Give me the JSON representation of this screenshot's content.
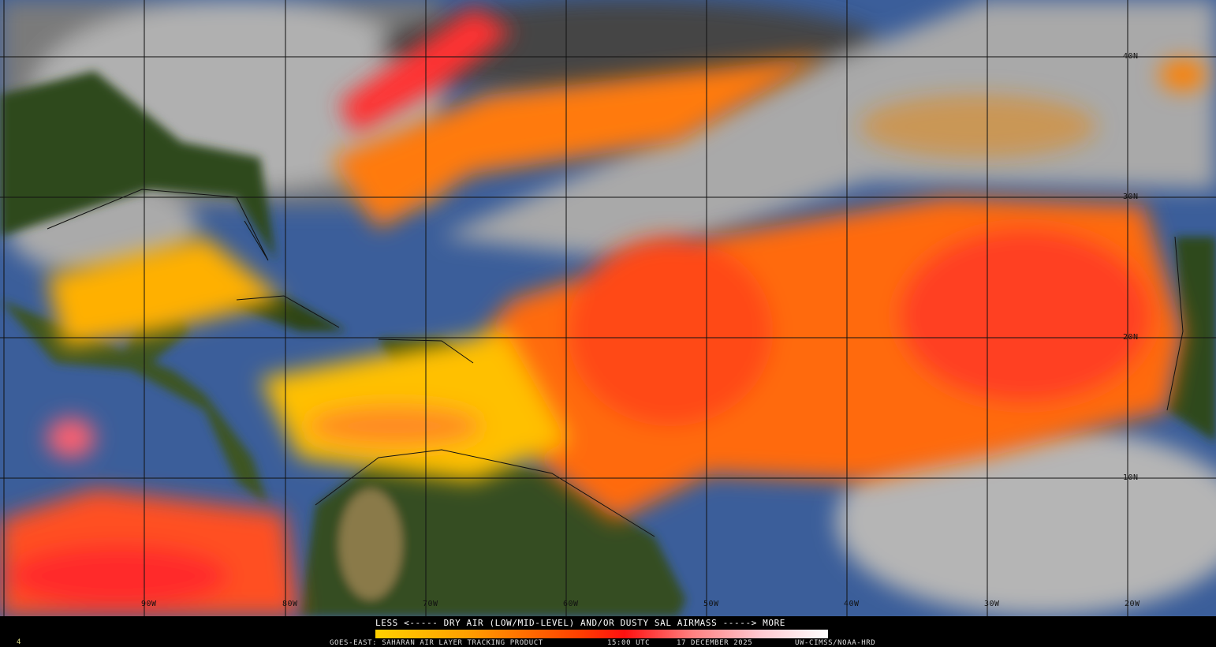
{
  "legend": {
    "title": "LESS <----- DRY AIR (LOW/MID-LEVEL) AND/OR DUSTY SAL AIRMASS -----> MORE",
    "colorbar_colors": [
      "#ffd000",
      "#ffa000",
      "#ff4000",
      "#ff1010",
      "#ff8080",
      "#ffc8d0",
      "#ffffff"
    ]
  },
  "footer": {
    "product": "GOES-EAST: SAHARAN AIR LAYER TRACKING PRODUCT",
    "time": "15:00 UTC",
    "date": "17 DECEMBER 2025",
    "credit": "UW-CIMSS/NOAA-HRD",
    "frame": "4"
  },
  "grid": {
    "latitudes": [
      "40N",
      "30N",
      "20N",
      "10N"
    ],
    "longitudes": [
      "90W",
      "80W",
      "70W",
      "60W",
      "50W",
      "40W",
      "30W",
      "20W"
    ]
  },
  "colors": {
    "ocean": "#3a5f9c",
    "land": "#2f4a1c",
    "cloud": "#a8a8a8",
    "dry_air": "#ff6a00"
  }
}
